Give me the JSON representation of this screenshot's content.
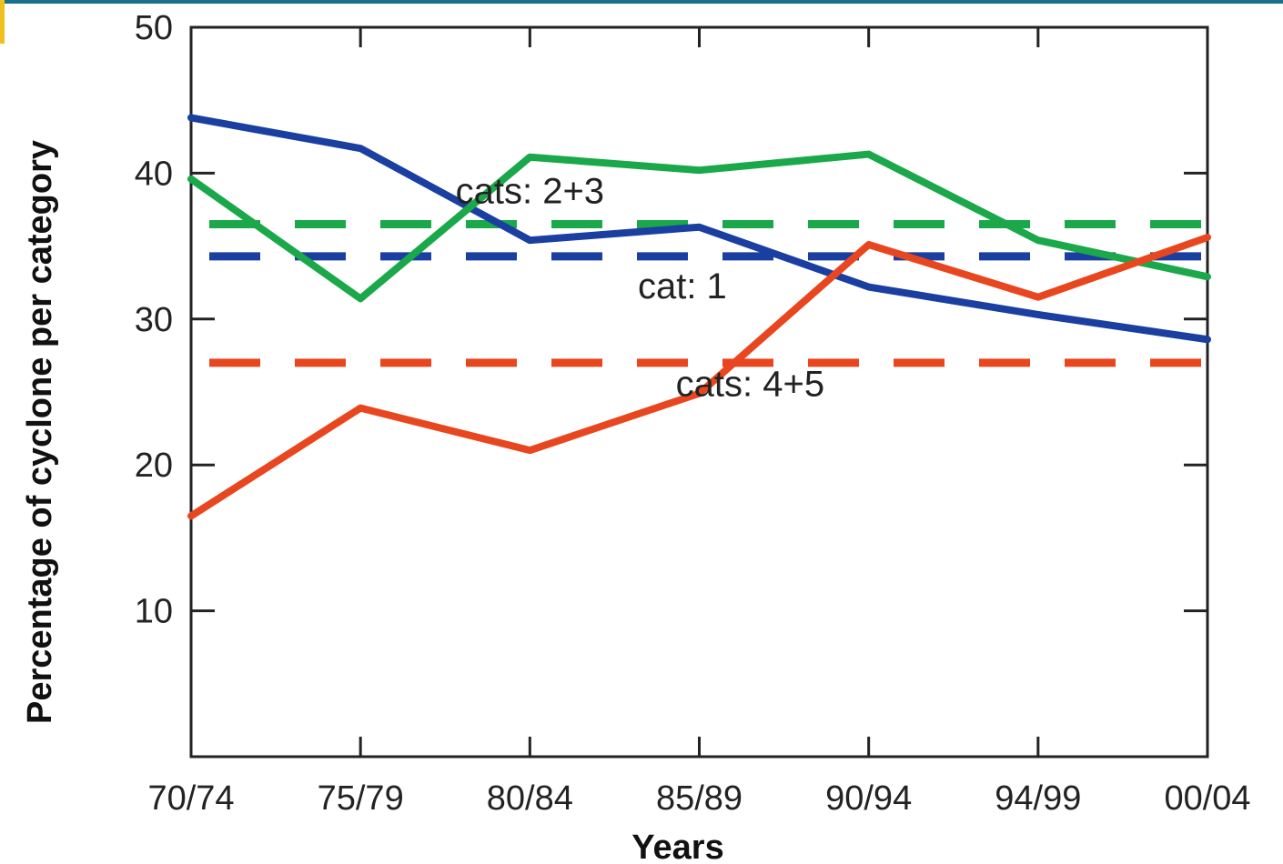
{
  "chart_data": {
    "type": "line",
    "xlabel": "Years",
    "ylabel": "Percentage of cyclone per category",
    "categories": [
      "70/74",
      "75/79",
      "80/84",
      "85/89",
      "90/94",
      "94/99",
      "00/04"
    ],
    "ylim": [
      0,
      50
    ],
    "yticks": [
      10,
      20,
      30,
      40,
      50
    ],
    "grid": false,
    "series": [
      {
        "name": "cat: 1",
        "color": "#1a3fa0",
        "values": [
          43.8,
          41.7,
          35.4,
          36.3,
          32.2,
          30.3,
          28.6
        ]
      },
      {
        "name": "cats: 2+3",
        "color": "#1aa84a",
        "values": [
          39.6,
          31.4,
          41.1,
          40.2,
          41.3,
          35.4,
          32.9
        ]
      },
      {
        "name": "cats: 4+5",
        "color": "#e8461f",
        "values": [
          16.5,
          23.9,
          21.0,
          24.9,
          35.1,
          31.5,
          35.6
        ]
      }
    ],
    "reference_lines": [
      {
        "name": "cats: 2+3",
        "color": "#1aa84a",
        "value": 36.5
      },
      {
        "name": "cat: 1",
        "color": "#1a3fa0",
        "value": 34.3
      },
      {
        "name": "cats: 4+5",
        "color": "#e8461f",
        "value": 27.0
      }
    ],
    "annotations": [
      {
        "text": "cats: 2+3",
        "x": 2.0,
        "y": 38.8
      },
      {
        "text": "cat: 1",
        "x": 2.9,
        "y": 32.3
      },
      {
        "text": "cats: 4+5",
        "x": 3.3,
        "y": 25.6
      }
    ]
  },
  "decor": {
    "topbar_color": "#1a6f8a",
    "accent_color": "#f0c020"
  }
}
